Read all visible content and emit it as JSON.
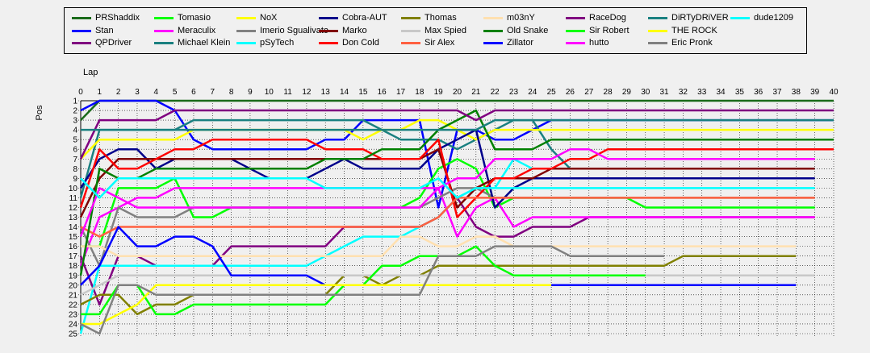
{
  "chart_data": {
    "type": "line",
    "xlabel": "Lap",
    "ylabel": "Pos",
    "xlim": [
      0,
      40
    ],
    "ylim": [
      1,
      25
    ],
    "y_inverted": true,
    "grid": true,
    "legend_position": "top",
    "x_ticks": [
      0,
      1,
      2,
      3,
      4,
      5,
      6,
      7,
      8,
      9,
      10,
      11,
      12,
      13,
      14,
      15,
      16,
      17,
      18,
      19,
      20,
      21,
      22,
      23,
      24,
      25,
      26,
      27,
      28,
      29,
      30,
      31,
      32,
      33,
      34,
      35,
      36,
      37,
      38,
      39,
      40
    ],
    "y_ticks": [
      1,
      2,
      3,
      4,
      5,
      6,
      7,
      8,
      9,
      10,
      11,
      12,
      13,
      14,
      15,
      16,
      17,
      18,
      19,
      20,
      21,
      22,
      23,
      24,
      25
    ],
    "series": [
      {
        "name": "PRShaddix",
        "color": "#1a6b1a",
        "values": [
          3,
          1,
          1,
          1,
          1,
          1,
          1,
          1,
          1,
          1,
          1,
          1,
          1,
          1,
          1,
          1,
          1,
          1,
          1,
          1,
          1,
          1,
          1,
          1,
          1,
          1,
          1,
          1,
          1,
          1,
          1,
          1,
          1,
          1,
          1,
          1,
          1,
          1,
          1,
          1,
          1
        ]
      },
      {
        "name": "Stan",
        "color": "#0000ff",
        "values": [
          2,
          1,
          1,
          1,
          1,
          2,
          5,
          6,
          6,
          6,
          6,
          6,
          6,
          5,
          5,
          3,
          3,
          3,
          3,
          12,
          4,
          4,
          5,
          5,
          4,
          3,
          3,
          3,
          3,
          3,
          3,
          3,
          3,
          3,
          3,
          3,
          3,
          3,
          3,
          3,
          3
        ]
      },
      {
        "name": "QPDriver",
        "color": "#800080",
        "values": [
          17,
          22,
          17,
          17,
          18,
          18,
          18,
          18,
          16,
          16,
          16,
          16,
          16,
          16,
          14,
          14,
          14,
          14,
          14,
          13,
          11,
          14,
          15,
          15,
          14,
          14,
          14,
          13,
          13,
          13,
          13,
          13,
          13,
          13,
          13,
          13,
          13,
          13,
          13,
          13
        ]
      },
      {
        "name": "Tomasio",
        "color": "#00ff00",
        "values": [
          16,
          16,
          10,
          10,
          10,
          9,
          13,
          13,
          12,
          12,
          12,
          12,
          12,
          12,
          12,
          12,
          12,
          12,
          11,
          8,
          7,
          8,
          12,
          11,
          11,
          11,
          11,
          11,
          11,
          11,
          12,
          12,
          12,
          12,
          12,
          12,
          12,
          12,
          12,
          12
        ]
      },
      {
        "name": "Meraculix",
        "color": "#ff00ff",
        "values": [
          18,
          13,
          12,
          11,
          11,
          10,
          10,
          10,
          10,
          10,
          10,
          10,
          10,
          10,
          10,
          10,
          10,
          10,
          10,
          10,
          15,
          12,
          11,
          14,
          13,
          13,
          13,
          13,
          13,
          13,
          13,
          13,
          13,
          13,
          13,
          13,
          13,
          13,
          13,
          13
        ]
      },
      {
        "name": "Michael Klein",
        "color": "#1a8080",
        "values": [
          11,
          4,
          4,
          4,
          4,
          4,
          3,
          3,
          3,
          3,
          3,
          3,
          3,
          3,
          3,
          3,
          4,
          5,
          5,
          5,
          6,
          5,
          4,
          3,
          3,
          6,
          8,
          8,
          8,
          8,
          8,
          8,
          8,
          8,
          8,
          8,
          8,
          8,
          8,
          8
        ]
      },
      {
        "name": "NoX",
        "color": "#ffff00",
        "values": [
          7,
          5,
          5,
          5,
          5,
          5,
          4,
          4,
          4,
          4,
          4,
          4,
          4,
          4,
          4,
          5,
          4,
          4,
          3,
          3,
          4,
          5,
          4,
          4,
          4,
          4,
          4,
          4,
          4,
          4,
          4,
          4,
          4,
          4,
          4,
          4,
          4,
          4,
          4,
          4,
          4
        ]
      },
      {
        "name": "Imerio Sgualivato",
        "color": "#808080",
        "values": [
          14,
          18,
          12,
          13,
          13,
          13,
          12,
          12,
          12,
          12,
          12,
          12,
          12,
          12,
          12,
          12,
          12,
          12,
          12,
          11,
          10,
          10,
          11,
          11,
          11,
          11,
          11,
          11,
          11,
          11,
          11,
          11,
          11,
          11,
          11,
          11,
          11,
          11,
          11,
          11
        ]
      },
      {
        "name": "pSyTech",
        "color": "#00ffff",
        "values": [
          25,
          18,
          18,
          18,
          18,
          18,
          18,
          18,
          18,
          18,
          18,
          18,
          18,
          17,
          16,
          15,
          15,
          15,
          14,
          13,
          11,
          10,
          10,
          7,
          8,
          8,
          8,
          8,
          8,
          8,
          8,
          8,
          8,
          8,
          8,
          8,
          8,
          8,
          8,
          8
        ]
      },
      {
        "name": "Cobra-AUT",
        "color": "#00008b",
        "values": [
          10,
          7,
          6,
          6,
          8,
          7,
          7,
          7,
          7,
          8,
          9,
          9,
          9,
          8,
          7,
          8,
          8,
          8,
          8,
          6,
          5,
          4,
          12,
          10,
          9,
          9,
          9,
          9,
          9,
          9,
          9,
          9,
          9,
          9,
          9,
          9,
          9,
          9,
          9,
          9
        ]
      },
      {
        "name": "Marko",
        "color": "#800000",
        "values": [
          13,
          9,
          7,
          7,
          7,
          7,
          7,
          7,
          7,
          7,
          7,
          7,
          7,
          7,
          7,
          7,
          7,
          7,
          7,
          6,
          12,
          10,
          9,
          9,
          9,
          8,
          8,
          8,
          8,
          8,
          8,
          8,
          8,
          8,
          8,
          8,
          8,
          8,
          8,
          8
        ]
      },
      {
        "name": "Don Cold",
        "color": "#ff0000",
        "values": [
          12,
          6,
          8,
          8,
          7,
          6,
          6,
          5,
          5,
          5,
          5,
          5,
          5,
          6,
          6,
          6,
          7,
          7,
          7,
          5,
          13,
          11,
          9,
          9,
          8,
          8,
          7,
          7,
          6,
          6,
          6,
          6,
          6,
          6,
          6,
          6,
          6,
          6,
          6,
          6,
          6
        ]
      },
      {
        "name": "Thomas",
        "color": "#808000",
        "values": [
          22,
          21,
          21,
          23,
          22,
          22,
          21,
          21,
          21,
          21,
          21,
          21,
          21,
          21,
          19,
          19,
          20,
          19,
          19,
          18,
          18,
          18,
          18,
          18,
          18,
          18,
          18,
          18,
          18,
          18,
          18,
          18,
          17,
          17,
          17,
          17,
          17,
          17,
          17
        ]
      },
      {
        "name": "Max Spied",
        "color": "#c8c8c8",
        "values": [
          21,
          20,
          19,
          19,
          19,
          19,
          19,
          19,
          19,
          19,
          19,
          19,
          19,
          19,
          19,
          19,
          19,
          19,
          19,
          19,
          19,
          19,
          19,
          19,
          19,
          19,
          19,
          19,
          19,
          19,
          19,
          19,
          19,
          19,
          19,
          19,
          19,
          19,
          19,
          19
        ]
      },
      {
        "name": "Sir Alex",
        "color": "#ff6040",
        "values": [
          14,
          15,
          14,
          14,
          14,
          14,
          14,
          14,
          14,
          14,
          14,
          14,
          14,
          14,
          14,
          14,
          14,
          14,
          14,
          13,
          11,
          11,
          11,
          11,
          11,
          11,
          11,
          11,
          11,
          11,
          11,
          11,
          11,
          11,
          11,
          11,
          11,
          11,
          11,
          11
        ]
      },
      {
        "name": "m03nY",
        "color": "#ffe0b0",
        "values": [
          16,
          16,
          17,
          17,
          17,
          17,
          17,
          17,
          17,
          17,
          17,
          17,
          17,
          17,
          17,
          17,
          17,
          15,
          15,
          16,
          16,
          15,
          15,
          16,
          16,
          16,
          16,
          16,
          16,
          16,
          16,
          16,
          16,
          16,
          16,
          16,
          16,
          16,
          16
        ]
      },
      {
        "name": "Old Snake",
        "color": "#008000",
        "values": [
          19,
          8,
          9,
          9,
          8,
          8,
          8,
          8,
          8,
          8,
          8,
          8,
          8,
          7,
          7,
          7,
          6,
          6,
          6,
          4,
          3,
          2,
          6,
          6,
          6,
          5,
          5,
          5,
          5,
          5,
          5,
          5,
          5,
          5,
          5,
          5,
          5,
          5,
          5,
          5,
          5
        ]
      },
      {
        "name": "Zillator",
        "color": "#0000ff",
        "values": [
          20,
          18,
          14,
          16,
          16,
          15,
          15,
          16,
          19,
          19,
          19,
          19,
          19,
          20,
          20,
          20,
          20,
          20,
          20,
          20,
          20,
          20,
          20,
          20,
          20,
          20,
          20,
          20,
          20,
          20,
          20,
          20,
          20,
          20,
          20,
          20,
          20,
          20,
          20
        ]
      },
      {
        "name": "RaceDog",
        "color": "#800080",
        "values": [
          7,
          3,
          3,
          3,
          3,
          2,
          2,
          2,
          2,
          2,
          2,
          2,
          2,
          2,
          2,
          2,
          2,
          2,
          2,
          2,
          2,
          3,
          2,
          2,
          2,
          2,
          2,
          2,
          2,
          2,
          2,
          2,
          2,
          2,
          2,
          2,
          2,
          2,
          2,
          2,
          2
        ]
      },
      {
        "name": "Sir Robert",
        "color": "#00ff00",
        "values": [
          23,
          23,
          20,
          20,
          23,
          23,
          22,
          22,
          22,
          22,
          22,
          22,
          22,
          22,
          20,
          20,
          18,
          18,
          17,
          17,
          17,
          16,
          18,
          19,
          19,
          19,
          19,
          19,
          19,
          19,
          19
        ]
      },
      {
        "name": "hutto",
        "color": "#ff00ff",
        "values": [
          15,
          10,
          11,
          12,
          12,
          12,
          12,
          12,
          12,
          12,
          12,
          12,
          12,
          12,
          12,
          12,
          12,
          12,
          12,
          10,
          9,
          9,
          7,
          7,
          7,
          7,
          6,
          6,
          7,
          7,
          7,
          7,
          7,
          7,
          7,
          7,
          7,
          7,
          7,
          7
        ]
      },
      {
        "name": "DiRTyDRiVER",
        "color": "#1a8080",
        "values": [
          4,
          4,
          4,
          4,
          4,
          4,
          4,
          4,
          4,
          4,
          4,
          4,
          4,
          4,
          4,
          4,
          4,
          4,
          4,
          4,
          4,
          4,
          3,
          3,
          3,
          3,
          3,
          3,
          3,
          3,
          3,
          3,
          3,
          3,
          3,
          3,
          3,
          3,
          3,
          3,
          3
        ]
      },
      {
        "name": "THE ROCK",
        "color": "#ffff00",
        "values": [
          24,
          24,
          23,
          22,
          20,
          20,
          20,
          20,
          20,
          20,
          20,
          20,
          20,
          20,
          20,
          20,
          20,
          20,
          20,
          20,
          20,
          20,
          20,
          20,
          20,
          20
        ]
      },
      {
        "name": "Eric Pronk",
        "color": "#808080",
        "values": [
          24,
          25,
          20,
          20,
          21,
          21,
          21,
          21,
          21,
          21,
          21,
          21,
          21,
          21,
          21,
          21,
          21,
          21,
          21,
          17,
          17,
          17,
          16,
          16,
          16,
          16,
          17,
          17,
          17,
          17,
          17,
          17
        ]
      },
      {
        "name": "dude1209",
        "color": "#00ffff",
        "values": [
          9,
          11,
          9,
          9,
          9,
          9,
          9,
          9,
          9,
          9,
          9,
          9,
          9,
          10,
          10,
          10,
          10,
          10,
          10,
          9,
          11,
          10,
          10,
          10,
          10,
          10,
          10,
          10,
          10,
          10,
          10,
          10,
          10,
          10,
          10,
          10,
          10,
          10,
          10,
          10
        ]
      }
    ]
  }
}
